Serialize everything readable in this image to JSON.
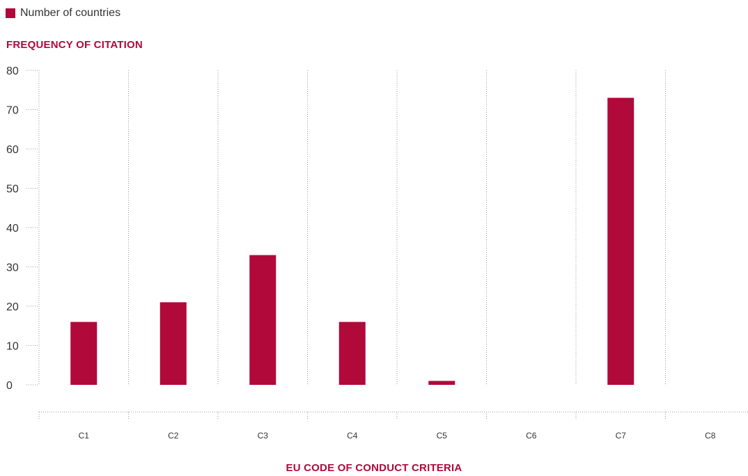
{
  "legend": {
    "label": "Number of countries"
  },
  "colors": {
    "accent": "#b0093a",
    "grid": "#9a9a9a"
  },
  "chart_data": {
    "type": "bar",
    "title": "",
    "ylabel": "FREQUENCY OF CITATION",
    "xlabel": "EU CODE OF CONDUCT CRITERIA",
    "categories": [
      "C1",
      "C2",
      "C3",
      "C4",
      "C5",
      "C6",
      "C7",
      "C8"
    ],
    "series": [
      {
        "name": "Number of countries",
        "values": [
          16,
          21,
          33,
          16,
          1,
          0,
          73,
          0
        ]
      }
    ],
    "ylim": [
      0,
      80
    ],
    "yticks": [
      0,
      10,
      20,
      30,
      40,
      50,
      60,
      70,
      80
    ],
    "grid": "vertical dotted category separators",
    "legend_position": "top-left"
  }
}
